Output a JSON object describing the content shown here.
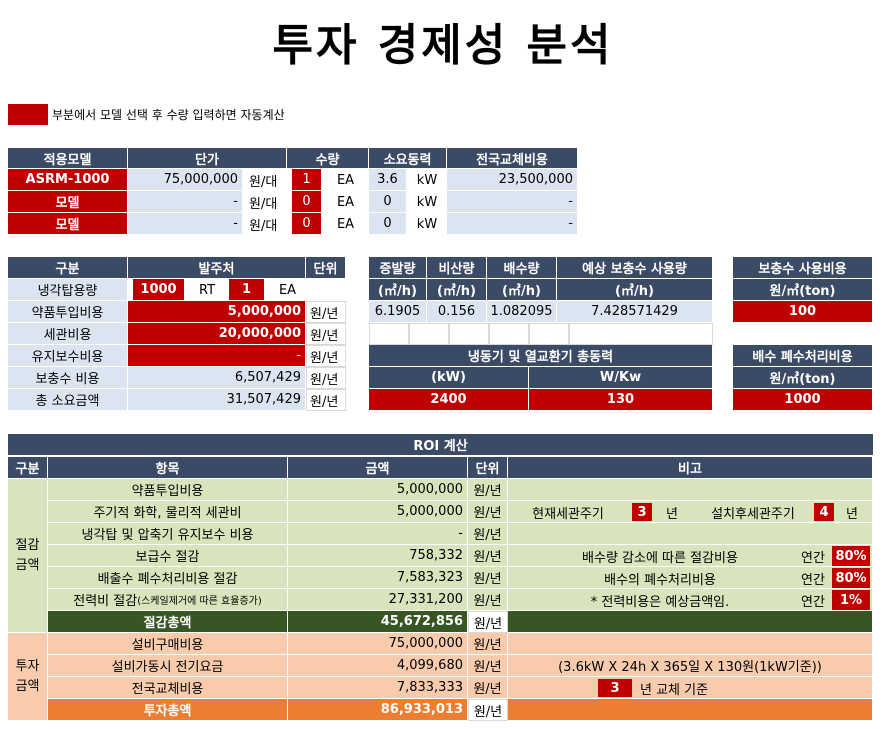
{
  "title": "투자 경제성 분석",
  "legend_note": "부분에서 모델 선택 후 수량 입력하면 자동계산",
  "colors": {
    "header": "#3b4b66",
    "input_red": "#c00000",
    "light_blue": "#dbe5f1",
    "green_light": "#d8e4bc",
    "green_dark": "#375623",
    "peach": "#f8cbad",
    "orange": "#ed7d31"
  },
  "model_table": {
    "headers": [
      "적용모델",
      "단가",
      "수량",
      "소요동력",
      "전국교체비용"
    ],
    "rows": [
      {
        "model": "ASRM-1000",
        "price": "75,000,000",
        "unit1": "원/대",
        "qty": "1",
        "unit2": "EA",
        "power": "3.6",
        "unit3": "kW",
        "replace": "23,500,000"
      },
      {
        "model": "모델",
        "price": "-",
        "unit1": "원/대",
        "qty": "0",
        "unit2": "EA",
        "power": "0",
        "unit3": "kW",
        "replace": "-"
      },
      {
        "model": "모델",
        "price": "-",
        "unit1": "원/대",
        "qty": "0",
        "unit2": "EA",
        "power": "0",
        "unit3": "kW",
        "replace": "-"
      }
    ]
  },
  "order_table": {
    "headers": [
      "구분",
      "발주처",
      "단위"
    ],
    "rows": [
      {
        "label": "냉각탑용량",
        "v1": "1000",
        "u1": "RT",
        "v2": "1",
        "u2": "EA"
      },
      {
        "label": "약품투입비용",
        "value": "5,000,000",
        "unit": "원/년"
      },
      {
        "label": "세관비용",
        "value": "20,000,000",
        "unit": "원/년"
      },
      {
        "label": "유지보수비용",
        "value": "-",
        "unit": "원/년"
      },
      {
        "label": "보충수 비용",
        "value": "6,507,429",
        "unit": "원/년"
      },
      {
        "label": "총 소요금액",
        "value": "31,507,429",
        "unit": "원/년"
      }
    ]
  },
  "water_table": {
    "headers": [
      "증발량",
      "비산량",
      "배수량",
      "예상 보충수 사용량"
    ],
    "units": [
      "(㎥/h)",
      "(㎥/h)",
      "(㎥/h)",
      "(㎥/h)"
    ],
    "values": [
      "6.1905",
      "0.156",
      "1.082095",
      "7.428571429"
    ]
  },
  "makeup_cost": {
    "header": "보충수 사용비용",
    "unit": "원/㎥(ton)",
    "value": "100"
  },
  "power_table": {
    "header": "냉동기 및 열교환기 총동력",
    "unit1": "(kW)",
    "unit2": "W/Kw",
    "value1": "2400",
    "value2": "130"
  },
  "drain_cost": {
    "header": "배수 폐수처리비용",
    "unit": "원/㎥(ton)",
    "value": "1000"
  },
  "roi": {
    "title": "ROI 계산",
    "headers": [
      "구분",
      "항목",
      "금액",
      "단위",
      "비고"
    ],
    "saving_group": "절감\n금액",
    "saving_rows": [
      {
        "item": "약품투입비용",
        "amount": "5,000,000",
        "unit": "원/년"
      },
      {
        "item": "주기적 화학, 물리적 세관비",
        "amount": "5,000,000",
        "unit": "원/년"
      },
      {
        "item": "냉각탑 및 압축기 유지보수 비용",
        "amount": "-",
        "unit": "원/년"
      },
      {
        "item": "보급수 절감",
        "amount": "758,332",
        "unit": "원/년"
      },
      {
        "item": "배출수 폐수처리비용 절감",
        "amount": "7,583,323",
        "unit": "원/년"
      },
      {
        "item": "전력비 절감",
        "item_small": "(스케일제거에 따른 효율증가)",
        "amount": "27,331,200",
        "unit": "원/년"
      }
    ],
    "saving_total": {
      "label": "절감총액",
      "amount": "45,672,856",
      "unit": "원/년"
    },
    "notes": {
      "cur_cycle_label": "현재세관주기",
      "cur_cycle": "3",
      "year1": "년",
      "after_cycle_label": "설치후세관주기",
      "after_cycle": "4",
      "year2": "년",
      "drain_note": "배수량 감소에 따른 절감비용",
      "annual1": "연간",
      "pct1": "80%",
      "waste_note": "배수의 폐수처리비용",
      "annual2": "연간",
      "pct2": "80%",
      "power_note": "* 전력비용은 예상금액임.",
      "annual3": "연간",
      "pct3": "1%"
    },
    "invest_group": "투자\n금액",
    "invest_rows": [
      {
        "item": "설비구매비용",
        "amount": "75,000,000",
        "unit": "원/년"
      },
      {
        "item": "설비가동시 전기요금",
        "amount": "4,099,680",
        "unit": "원/년"
      },
      {
        "item": "전국교체비용",
        "amount": "7,833,333",
        "unit": "원/년"
      }
    ],
    "invest_total": {
      "label": "투자총액",
      "amount": "86,933,013",
      "unit": "원/년"
    },
    "invest_notes": {
      "formula": "(3.6kW X 24h X 365일 X 130원(1kW기준))",
      "replace_years": "3",
      "replace_text": "년 교체 기준"
    }
  }
}
